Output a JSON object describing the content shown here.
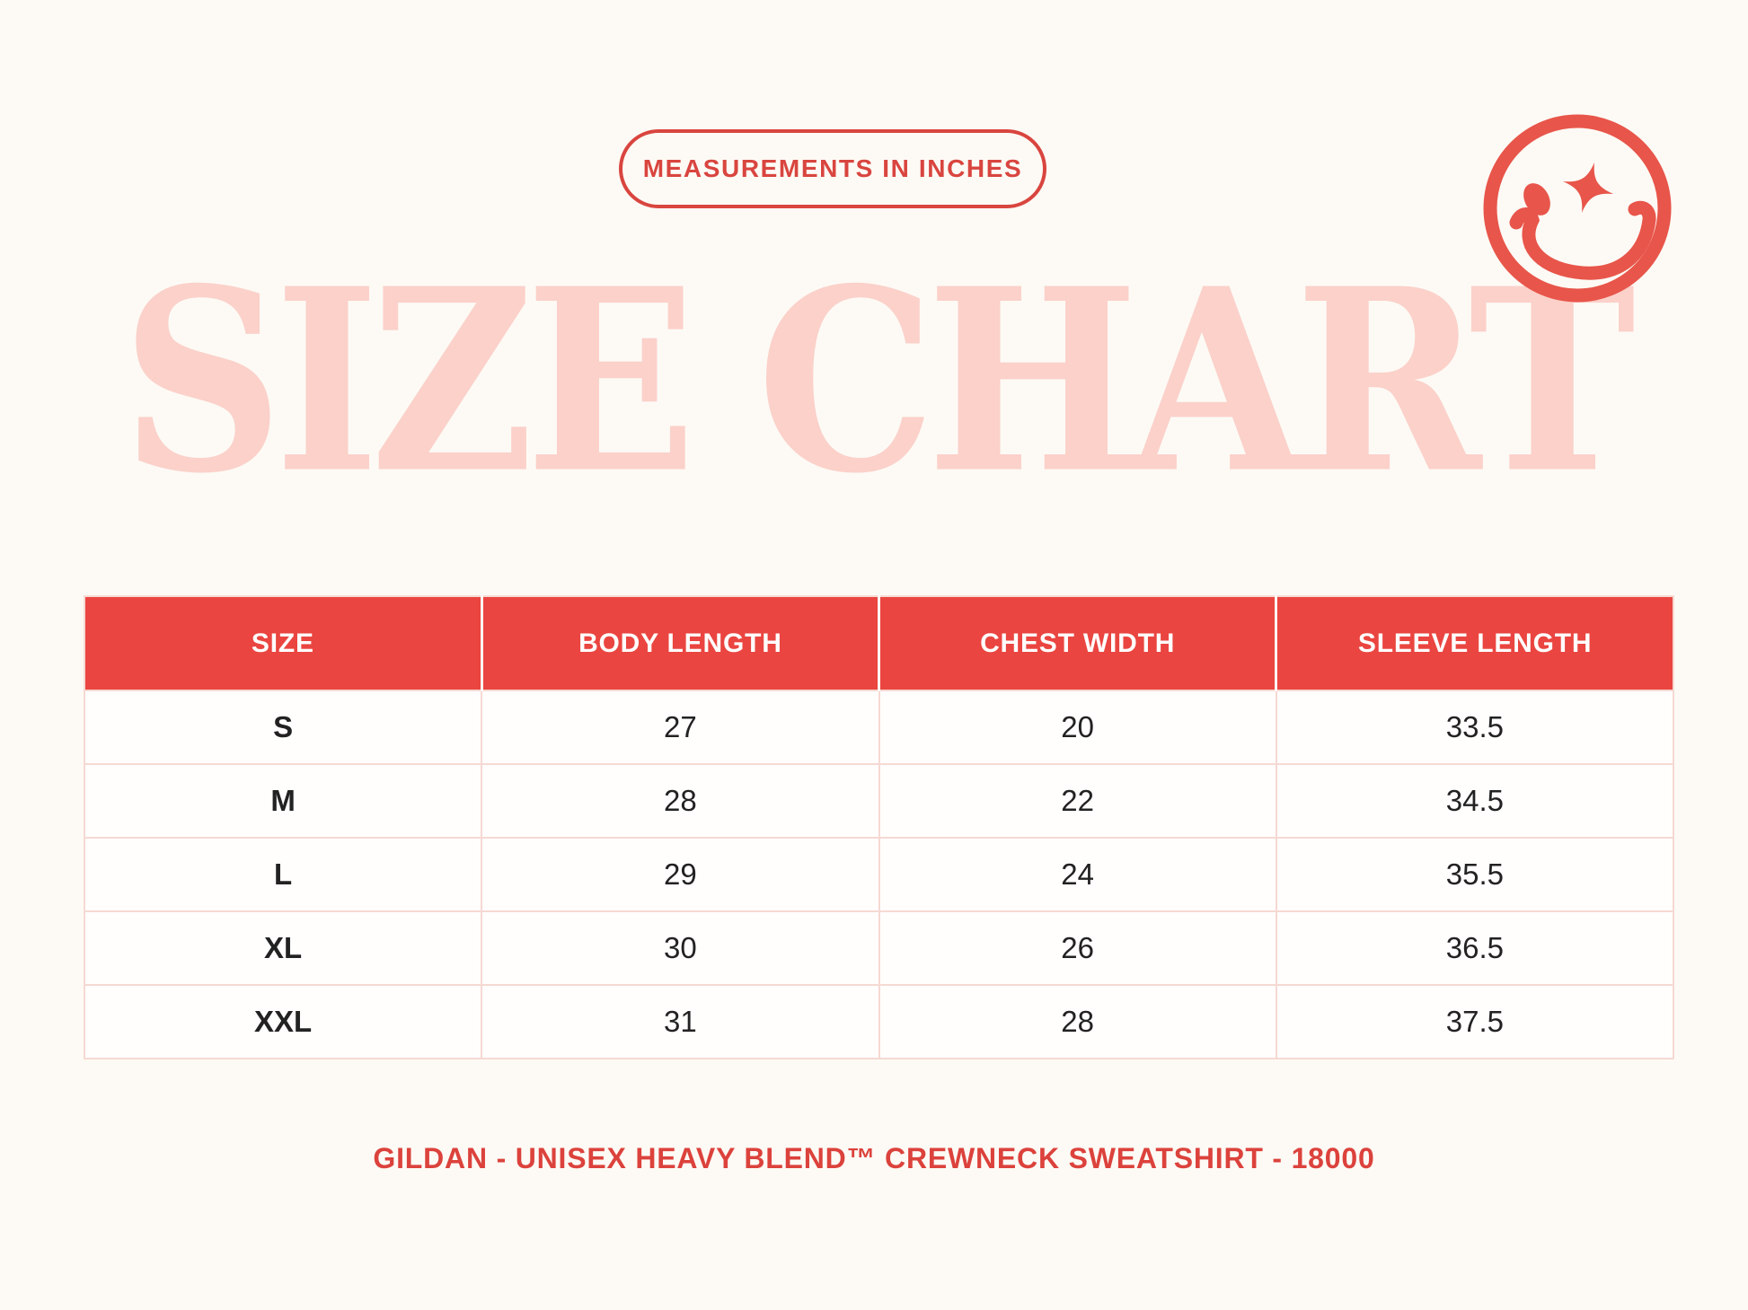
{
  "colors": {
    "background": "#fdfaf5",
    "header_red": "#ea4540",
    "accent_red": "#d9453f",
    "smiley_red": "#e8554a",
    "title_pink": "#fbd1ca",
    "grid_pink": "#f6d9d3",
    "cell_text": "#222222"
  },
  "badge": {
    "label": "MEASUREMENTS IN INCHES"
  },
  "title": {
    "text": "SIZE CHART"
  },
  "icons": {
    "smiley": "winking-smiley-with-sparkle-eye"
  },
  "chart_data": {
    "type": "table",
    "title": "SIZE CHART",
    "subtitle": "MEASUREMENTS IN INCHES",
    "columns": [
      "SIZE",
      "BODY LENGTH",
      "CHEST WIDTH",
      "SLEEVE LENGTH"
    ],
    "rows": [
      [
        "S",
        "27",
        "20",
        "33.5"
      ],
      [
        "M",
        "28",
        "22",
        "34.5"
      ],
      [
        "L",
        "29",
        "24",
        "35.5"
      ],
      [
        "XL",
        "30",
        "26",
        "36.5"
      ],
      [
        "XXL",
        "31",
        "28",
        "37.5"
      ]
    ],
    "units": "inches"
  },
  "footer": {
    "text": "GILDAN - UNISEX HEAVY BLEND™ CREWNECK SWEATSHIRT - 18000"
  }
}
